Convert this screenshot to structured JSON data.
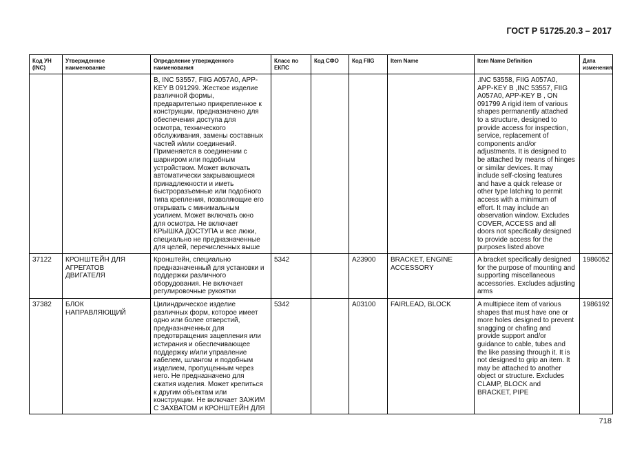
{
  "header": {
    "doc_title": "ГОСТ Р 51725.20.3 – 2017"
  },
  "footer": {
    "page_number": "718"
  },
  "table": {
    "columns": [
      "Код УН\n(INC)",
      "Утвержденное\nнаименование",
      "Определение утвержденного\nнаименования",
      "Класс по\nЕКПС",
      "Код СФО",
      "Код FIIG",
      "Item Name",
      "Item Name Definition",
      "Дата\nизменения"
    ],
    "rows": [
      {
        "cells": [
          "",
          "",
          "B, INC 53557, FIIG A057A0, APP-\nKEY B 091299. Жесткое изделие\nразличной формы,\nпредварительно прикрепленное к\nконструкции, предназначено для\nобеспечения доступа для\nосмотра, технического\nобслуживания, замены составных\nчастей и/или соединений.\nПрименяется в соединении с\nшарниром или подобным\nустройством. Может включать\nавтоматически закрывающиеся\nпринадлежности и иметь\nбыстроразъемные или подобного\nтипа крепления, позволяющие его\nоткрывать с минимальным\nусилием. Может включать окно\nдля осмотра. Не включает\nКРЫШКА ДОСТУПА и все люки,\nспециально не предназначенные\nдля целей, перечисленных выше",
          "",
          "",
          "",
          "",
          ".INC 53558, FIIG A057A0,\nAPP-KEY B  ,INC 53557, FIIG\nA057A0, APP-KEY B  , ON\n091799 A rigid item of various\nshapes permanently attached\nto a structure, designed to\nprovide access for inspection,\nservice, replacement of\ncomponents and/or\nadjustments. It is designed to\nbe attached by means of hinges\nor similar devices. It may\ninclude self-closing features\nand have a quick release or\nother type latching to permit\naccess with a minimum of\neffort. It may include an\nobservation window. Excludes\nCOVER, ACCESS and all\ndoors not specifically designed\nto provide access for the\npurposes listed above",
          ""
        ]
      },
      {
        "cells": [
          "37122",
          "КРОНШТЕЙН ДЛЯ\nАГРЕГАТОВ\nДВИГАТЕЛЯ",
          "Кронштейн, специально\nпредназначенный для установки и\nподдержки различного\nоборудования. Не включает\nрегулировочные рукоятки",
          "5342",
          "",
          "A23900",
          "BRACKET, ENGINE\nACCESSORY",
          "A bracket specifically designed\nfor the purpose of mounting and\nsupporting miscellaneous\naccessories. Excludes adjusting\narms",
          "1986052"
        ]
      },
      {
        "cells": [
          "37382",
          "БЛОК\nНАПРАВЛЯЮЩИЙ",
          "Цилиндрическое изделие\nразличных форм, которое имеет\nодно или более отверстий,\nпредназначенных для\nпредотвращения зацепления или\nистирания и обеспечивающее\nподдержку и/или управление\nкабелем, шлангом и подобным\nизделием, пропущенным через\nнего. Не предназначено для\nсжатия изделия. Может крепиться\nк другим объектам или\nконструкции. Не включает ЗАЖИМ\nС ЗАХВАТОМ и КРОНШТЕЙН ДЛЯ",
          "5342",
          "",
          "A03100",
          "FAIRLEAD, BLOCK",
          "A multipiece item of various\nshapes that must have one or\nmore holes designed to prevent\nsnagging or chafing and\nprovide support and/or\nguidance to cable, tubes and\nthe like passing through it. It is\nnot designed to grip an item. It\nmay be attached to another\nobject or structure. Excludes\nCLAMP, BLOCK and\nBRACKET, PIPE",
          "1986192"
        ]
      }
    ]
  }
}
